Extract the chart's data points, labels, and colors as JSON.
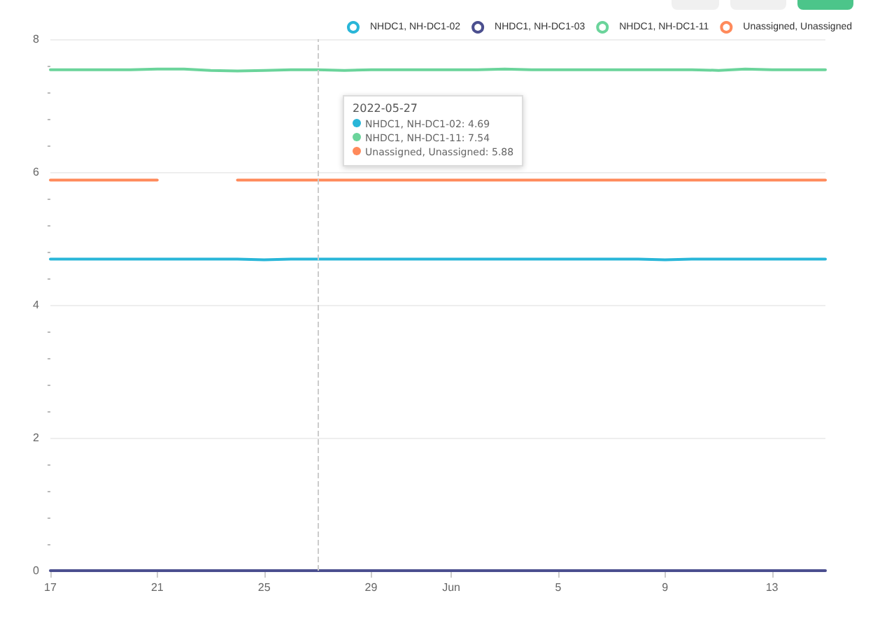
{
  "chart_data": {
    "type": "line",
    "x": [
      "2022-05-17",
      "2022-05-18",
      "2022-05-19",
      "2022-05-20",
      "2022-05-21",
      "2022-05-22",
      "2022-05-23",
      "2022-05-24",
      "2022-05-25",
      "2022-05-26",
      "2022-05-27",
      "2022-05-28",
      "2022-05-29",
      "2022-05-30",
      "2022-05-31",
      "2022-06-01",
      "2022-06-02",
      "2022-06-03",
      "2022-06-04",
      "2022-06-05",
      "2022-06-06",
      "2022-06-07",
      "2022-06-08",
      "2022-06-09",
      "2022-06-10",
      "2022-06-11",
      "2022-06-12",
      "2022-06-13",
      "2022-06-14",
      "2022-06-15"
    ],
    "series": [
      {
        "name": "NHDC1, NH-DC1-02",
        "color": "#29b6d8",
        "values": [
          4.69,
          4.69,
          4.69,
          4.69,
          4.69,
          4.69,
          4.69,
          4.69,
          4.68,
          4.69,
          4.69,
          4.69,
          4.69,
          4.69,
          4.69,
          4.69,
          4.69,
          4.69,
          4.69,
          4.69,
          4.69,
          4.69,
          4.69,
          4.68,
          4.69,
          4.69,
          4.69,
          4.69,
          4.69,
          4.69
        ]
      },
      {
        "name": "NHDC1, NH-DC1-03",
        "color": "#4b4f8f",
        "values": [
          0,
          0,
          0,
          0,
          0,
          0,
          0,
          0,
          0,
          0,
          0,
          0,
          0,
          0,
          0,
          0,
          0,
          0,
          0,
          0,
          0,
          0,
          0,
          0,
          0,
          0,
          0,
          0,
          0,
          0
        ]
      },
      {
        "name": "NHDC1, NH-DC1-11",
        "color": "#6bd49b",
        "values": [
          7.54,
          7.54,
          7.54,
          7.54,
          7.55,
          7.55,
          7.53,
          7.52,
          7.53,
          7.54,
          7.54,
          7.53,
          7.54,
          7.54,
          7.54,
          7.54,
          7.54,
          7.55,
          7.54,
          7.54,
          7.54,
          7.54,
          7.54,
          7.54,
          7.54,
          7.53,
          7.55,
          7.54,
          7.54,
          7.54
        ]
      },
      {
        "name": "Unassigned, Unassigned",
        "color": "#ff8a5b",
        "values": [
          5.88,
          5.88,
          5.88,
          5.88,
          5.88,
          null,
          null,
          5.88,
          5.88,
          5.88,
          5.88,
          5.88,
          5.88,
          5.88,
          5.88,
          5.88,
          5.88,
          5.88,
          5.88,
          5.88,
          5.88,
          5.88,
          5.88,
          5.88,
          5.88,
          5.88,
          5.88,
          5.88,
          5.88,
          5.88
        ]
      }
    ],
    "xlim": [
      "2022-05-17",
      "2022-06-15"
    ],
    "xticks": [
      {
        "value": "2022-05-17",
        "label": "17"
      },
      {
        "value": "2022-05-21",
        "label": "21"
      },
      {
        "value": "2022-05-25",
        "label": "25"
      },
      {
        "value": "2022-05-29",
        "label": "29"
      },
      {
        "value": "2022-06-01",
        "label": "Jun"
      },
      {
        "value": "2022-06-05",
        "label": "5"
      },
      {
        "value": "2022-06-09",
        "label": "9"
      },
      {
        "value": "2022-06-13",
        "label": "13"
      }
    ],
    "ylim": [
      0,
      8
    ],
    "yticks": [
      0,
      2,
      4,
      6,
      8
    ],
    "grid": "y",
    "legend": "top right",
    "marker": "none",
    "line_style": "solid",
    "ref_lines": [
      {
        "axis": "x",
        "value": "2022-05-27",
        "color": "#cccccc",
        "line_style": "dashed"
      }
    ],
    "annotations": [
      "2022-05-27",
      "NHDC1, NH-DC1-02: 4.69",
      "NHDC1, NH-DC1-11: 7.54",
      "Unassigned, Unassigned: 5.88"
    ]
  }
}
